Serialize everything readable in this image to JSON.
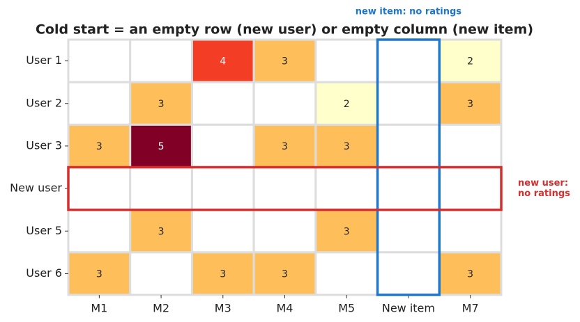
{
  "chart_data": {
    "type": "heatmap",
    "title": "Cold start = an empty row (new user) or empty column (new item)",
    "rows": [
      "User 1",
      "User 2",
      "User 3",
      "New user",
      "User 5",
      "User 6"
    ],
    "columns": [
      "M1",
      "M2",
      "M3",
      "M4",
      "M5",
      "New item",
      "M7"
    ],
    "values": [
      [
        null,
        null,
        4,
        3,
        null,
        null,
        2
      ],
      [
        null,
        3,
        null,
        null,
        2,
        null,
        3
      ],
      [
        3,
        5,
        null,
        3,
        3,
        null,
        null
      ],
      [
        null,
        null,
        null,
        null,
        null,
        null,
        null
      ],
      [
        null,
        3,
        null,
        null,
        3,
        null,
        null
      ],
      [
        3,
        null,
        3,
        3,
        null,
        null,
        3
      ]
    ],
    "colormap": "YlOrRd",
    "annotations": [
      {
        "lines": [
          "new item: no ratings"
        ],
        "column": 5,
        "color": "#1f77cc"
      },
      {
        "lines": [
          "new user:",
          "no ratings"
        ],
        "row": 3,
        "color": "#d32f2f"
      }
    ]
  }
}
